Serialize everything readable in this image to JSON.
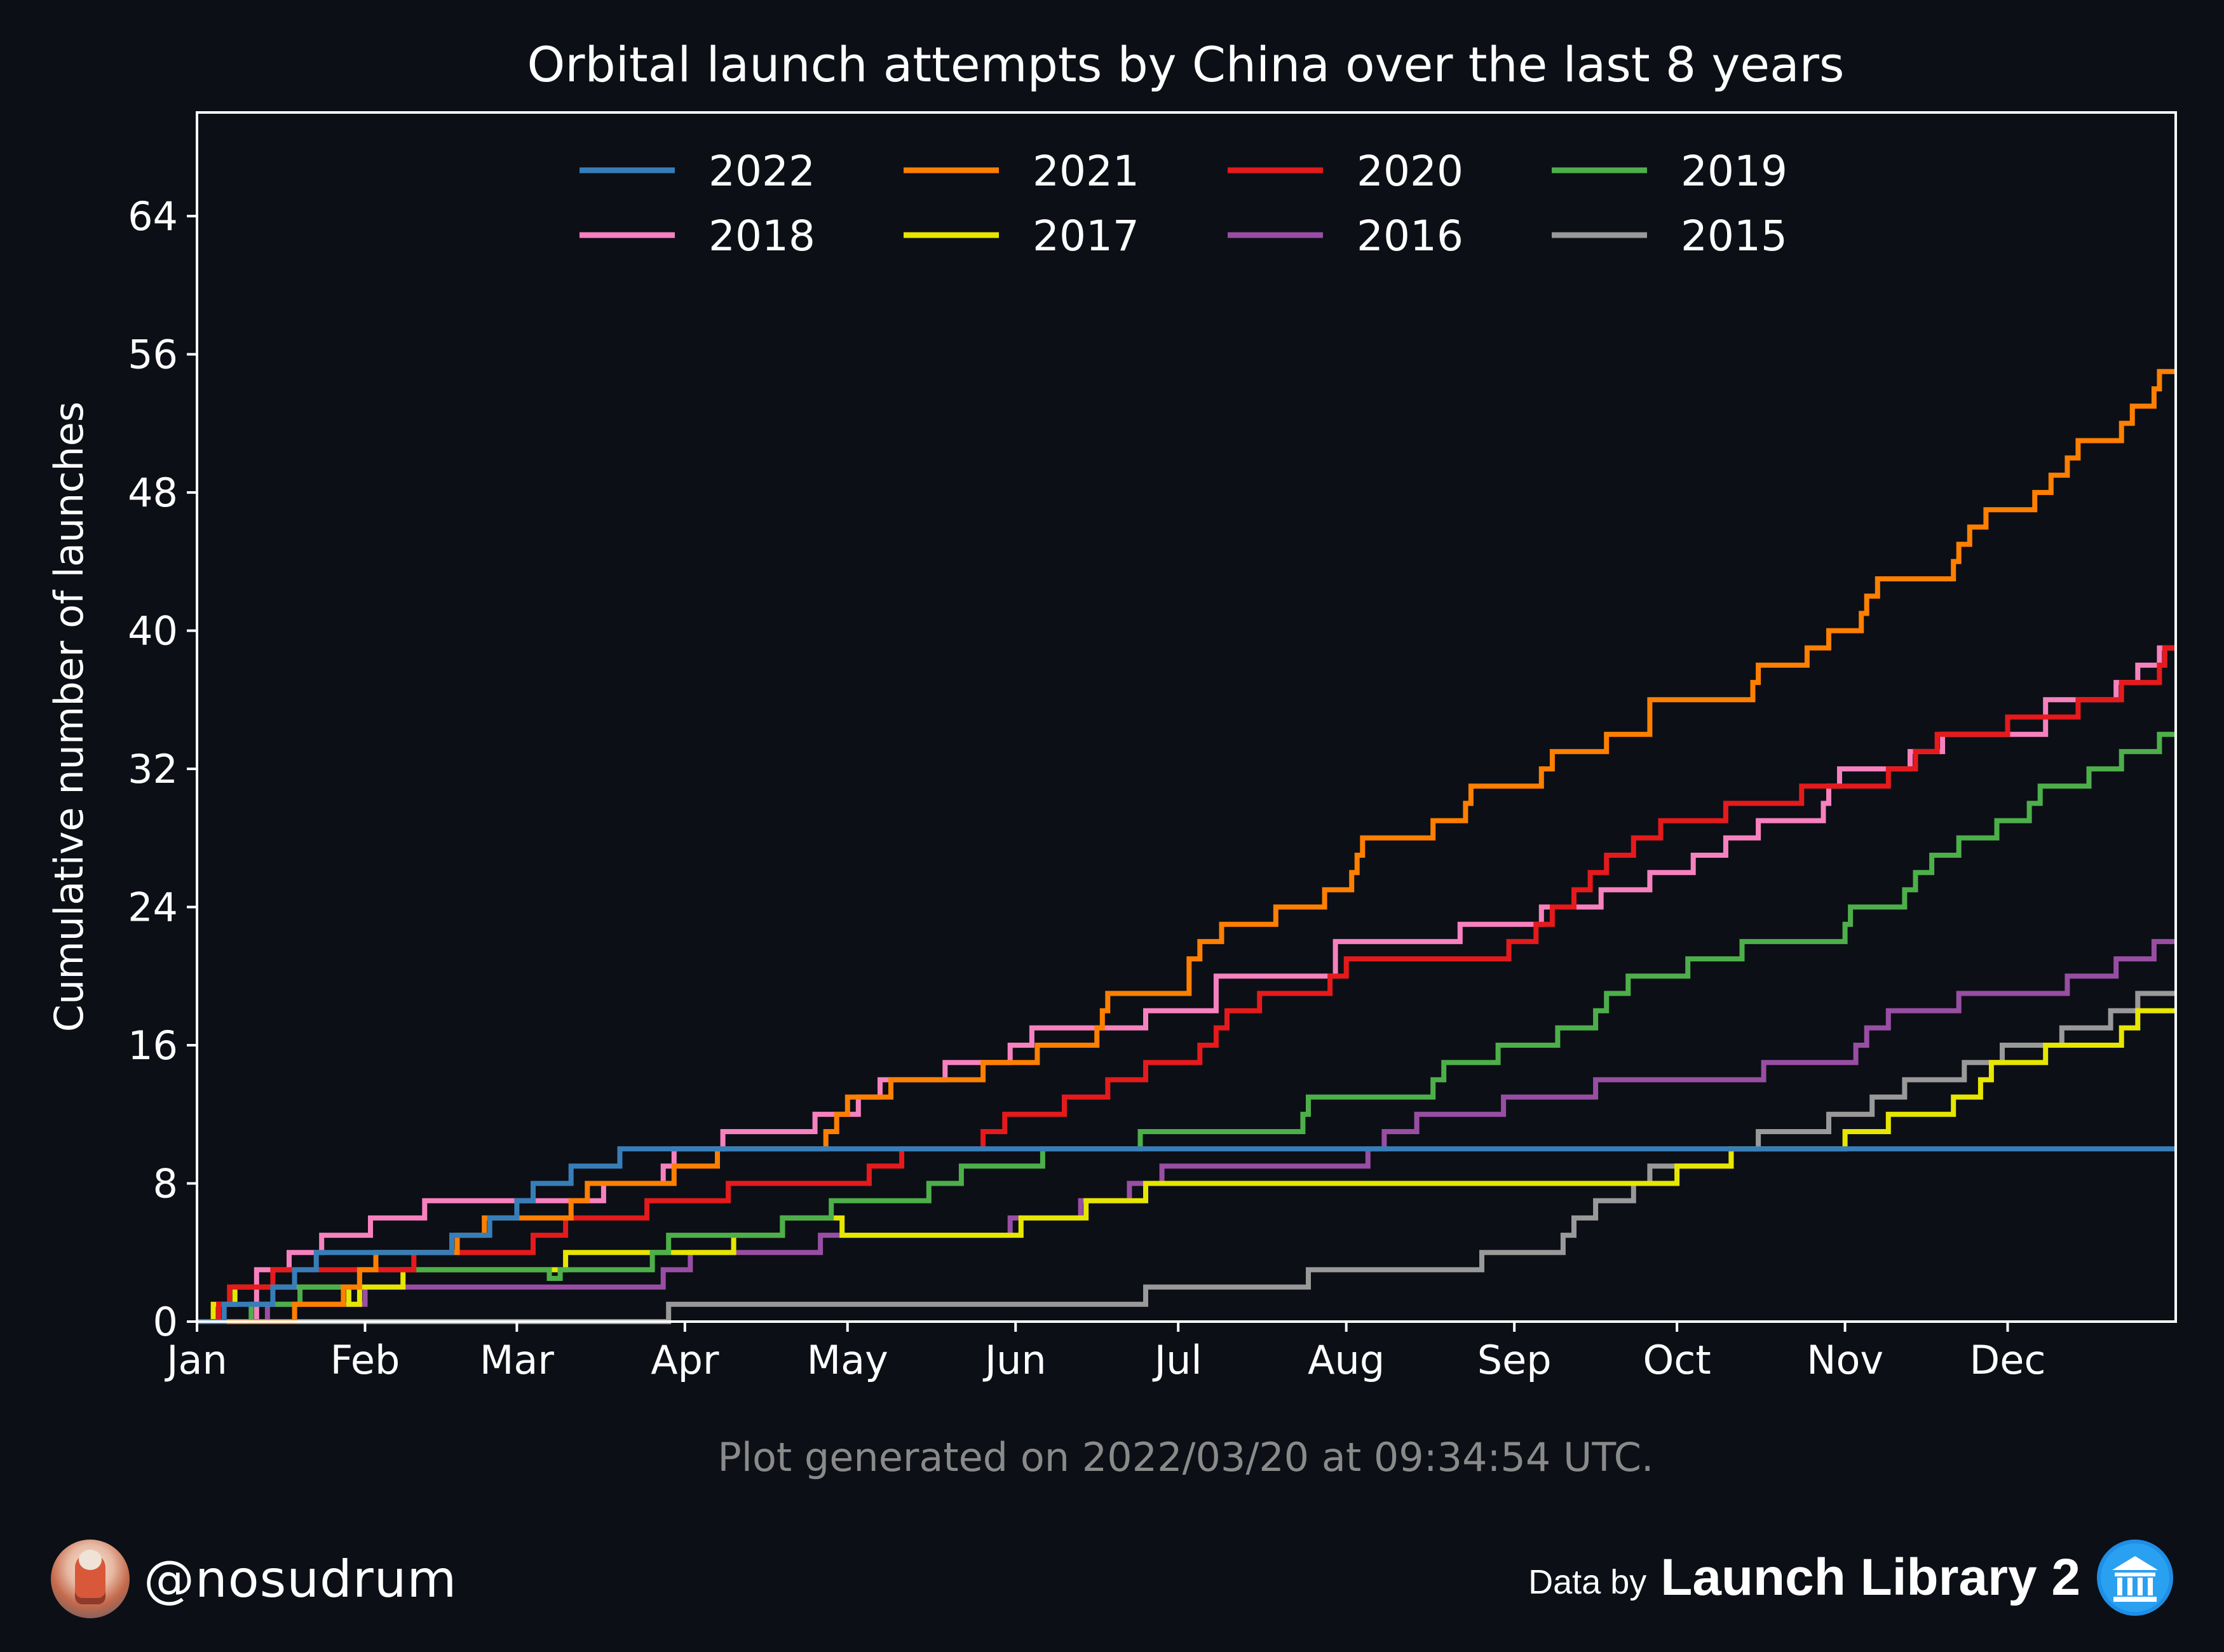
{
  "chart_data": {
    "type": "line",
    "step": true,
    "title": "Orbital launch attempts by China over the last 8 years",
    "ylabel": "Cumulative number of launches",
    "xlabel": "",
    "xlim": [
      0,
      365
    ],
    "ylim": [
      0,
      70
    ],
    "yticks": [
      0,
      8,
      16,
      24,
      32,
      40,
      48,
      56,
      64
    ],
    "xticks": [
      {
        "label": "Jan",
        "day": 0
      },
      {
        "label": "Feb",
        "day": 31
      },
      {
        "label": "Mar",
        "day": 59
      },
      {
        "label": "Apr",
        "day": 90
      },
      {
        "label": "May",
        "day": 120
      },
      {
        "label": "Jun",
        "day": 151
      },
      {
        "label": "Jul",
        "day": 181
      },
      {
        "label": "Aug",
        "day": 212
      },
      {
        "label": "Sep",
        "day": 243
      },
      {
        "label": "Oct",
        "day": 273
      },
      {
        "label": "Nov",
        "day": 304
      },
      {
        "label": "Dec",
        "day": 334
      }
    ],
    "legend_placement": "upper-center",
    "grid": false,
    "series": [
      {
        "name": "2022",
        "color": "#377eb8",
        "points": [
          [
            0,
            0
          ],
          [
            5,
            1
          ],
          [
            14,
            2
          ],
          [
            18,
            3
          ],
          [
            22,
            4
          ],
          [
            47,
            5
          ],
          [
            54,
            6
          ],
          [
            59,
            7
          ],
          [
            62,
            8
          ],
          [
            69,
            9
          ],
          [
            78,
            10
          ]
        ]
      },
      {
        "name": "2021",
        "color": "#ff7f00",
        "points": [
          [
            0,
            0
          ],
          [
            18,
            1
          ],
          [
            27,
            2
          ],
          [
            30,
            3
          ],
          [
            33,
            4
          ],
          [
            48,
            5
          ],
          [
            53,
            6
          ],
          [
            69,
            7
          ],
          [
            72,
            8
          ],
          [
            88,
            9
          ],
          [
            96,
            10
          ],
          [
            116,
            11
          ],
          [
            118,
            12
          ],
          [
            120,
            13
          ],
          [
            128,
            14
          ],
          [
            145,
            15
          ],
          [
            155,
            16
          ],
          [
            166,
            17
          ],
          [
            167,
            18
          ],
          [
            168,
            19
          ],
          [
            183,
            20
          ],
          [
            183,
            21
          ],
          [
            185,
            22
          ],
          [
            189,
            23
          ],
          [
            199,
            24
          ],
          [
            208,
            25
          ],
          [
            213,
            26
          ],
          [
            214,
            27
          ],
          [
            215,
            28
          ],
          [
            228,
            29
          ],
          [
            234,
            30
          ],
          [
            235,
            31
          ],
          [
            248,
            32
          ],
          [
            250,
            33
          ],
          [
            260,
            34
          ],
          [
            268,
            35
          ],
          [
            268,
            36
          ],
          [
            287,
            37
          ],
          [
            288,
            38
          ],
          [
            297,
            39
          ],
          [
            301,
            40
          ],
          [
            307,
            41
          ],
          [
            308,
            42
          ],
          [
            310,
            43
          ],
          [
            324,
            44
          ],
          [
            325,
            45
          ],
          [
            327,
            46
          ],
          [
            330,
            47
          ],
          [
            339,
            48
          ],
          [
            342,
            49
          ],
          [
            345,
            50
          ],
          [
            347,
            51
          ],
          [
            355,
            52
          ],
          [
            357,
            53
          ],
          [
            361,
            54
          ],
          [
            362,
            55
          ]
        ]
      },
      {
        "name": "2020",
        "color": "#e41a1c",
        "points": [
          [
            0,
            0
          ],
          [
            4,
            1
          ],
          [
            6,
            2
          ],
          [
            14,
            3
          ],
          [
            40,
            4
          ],
          [
            62,
            5
          ],
          [
            68,
            6
          ],
          [
            83,
            7
          ],
          [
            98,
            8
          ],
          [
            124,
            9
          ],
          [
            130,
            10
          ],
          [
            145,
            11
          ],
          [
            149,
            12
          ],
          [
            160,
            13
          ],
          [
            168,
            14
          ],
          [
            175,
            15
          ],
          [
            185,
            16
          ],
          [
            188,
            17
          ],
          [
            190,
            18
          ],
          [
            196,
            19
          ],
          [
            209,
            20
          ],
          [
            212,
            21
          ],
          [
            242,
            22
          ],
          [
            247,
            23
          ],
          [
            250,
            24
          ],
          [
            254,
            25
          ],
          [
            257,
            26
          ],
          [
            260,
            27
          ],
          [
            265,
            28
          ],
          [
            270,
            29
          ],
          [
            282,
            30
          ],
          [
            296,
            31
          ],
          [
            312,
            32
          ],
          [
            317,
            33
          ],
          [
            321,
            34
          ],
          [
            334,
            35
          ],
          [
            347,
            36
          ],
          [
            355,
            37
          ],
          [
            362,
            38
          ],
          [
            363,
            39
          ]
        ]
      },
      {
        "name": "2019",
        "color": "#4daf4a",
        "points": [
          [
            0,
            0
          ],
          [
            10,
            1
          ],
          [
            19,
            2
          ],
          [
            30,
            3
          ],
          [
            65,
            2.5
          ],
          [
            67,
            3
          ],
          [
            84,
            4
          ],
          [
            87,
            5
          ],
          [
            108,
            6
          ],
          [
            117,
            7
          ],
          [
            135,
            8
          ],
          [
            141,
            9
          ],
          [
            156,
            10
          ],
          [
            174,
            11
          ],
          [
            204,
            12
          ],
          [
            205,
            13
          ],
          [
            228,
            14
          ],
          [
            230,
            15
          ],
          [
            240,
            16
          ],
          [
            251,
            17
          ],
          [
            258,
            18
          ],
          [
            260,
            19
          ],
          [
            264,
            20
          ],
          [
            275,
            21
          ],
          [
            285,
            22
          ],
          [
            304,
            23
          ],
          [
            305,
            24
          ],
          [
            315,
            25
          ],
          [
            317,
            26
          ],
          [
            320,
            27
          ],
          [
            325,
            28
          ],
          [
            332,
            29
          ],
          [
            338,
            30
          ],
          [
            340,
            31
          ],
          [
            349,
            32
          ],
          [
            355,
            33
          ],
          [
            362,
            34
          ]
        ]
      },
      {
        "name": "2018",
        "color": "#f781bf",
        "points": [
          [
            0,
            0
          ],
          [
            11,
            3
          ],
          [
            17,
            4
          ],
          [
            23,
            5
          ],
          [
            32,
            6
          ],
          [
            42,
            7
          ],
          [
            75,
            8
          ],
          [
            86,
            9
          ],
          [
            88,
            10
          ],
          [
            97,
            11
          ],
          [
            114,
            12
          ],
          [
            122,
            13
          ],
          [
            126,
            14
          ],
          [
            138,
            15
          ],
          [
            150,
            16
          ],
          [
            154,
            17
          ],
          [
            175,
            18
          ],
          [
            188,
            20
          ],
          [
            210,
            22
          ],
          [
            233,
            23
          ],
          [
            248,
            24
          ],
          [
            259,
            25
          ],
          [
            268,
            26
          ],
          [
            276,
            27
          ],
          [
            282,
            28
          ],
          [
            288,
            29
          ],
          [
            300,
            30
          ],
          [
            301,
            31
          ],
          [
            303,
            32
          ],
          [
            316,
            33
          ],
          [
            322,
            34
          ],
          [
            341,
            36
          ],
          [
            354,
            37
          ],
          [
            358,
            38
          ],
          [
            362,
            39
          ]
        ]
      },
      {
        "name": "2017",
        "color": "#e6e600",
        "points": [
          [
            0,
            0
          ],
          [
            3,
            1
          ],
          [
            7,
            2
          ],
          [
            28,
            1
          ],
          [
            30,
            2
          ],
          [
            38,
            3
          ],
          [
            68,
            4
          ],
          [
            99,
            5
          ],
          [
            108,
            6
          ],
          [
            119,
            5
          ],
          [
            152,
            6
          ],
          [
            164,
            7
          ],
          [
            175,
            8
          ],
          [
            273,
            9
          ],
          [
            283,
            10
          ],
          [
            304,
            11
          ],
          [
            312,
            12
          ],
          [
            324,
            13
          ],
          [
            329,
            14
          ],
          [
            331,
            15
          ],
          [
            341,
            16
          ],
          [
            355,
            17
          ],
          [
            358,
            18
          ]
        ]
      },
      {
        "name": "2016",
        "color": "#984ea3",
        "points": [
          [
            0,
            0
          ],
          [
            13,
            1
          ],
          [
            31,
            2
          ],
          [
            86,
            3
          ],
          [
            91,
            4
          ],
          [
            115,
            5
          ],
          [
            150,
            6
          ],
          [
            163,
            7
          ],
          [
            172,
            8
          ],
          [
            178,
            9
          ],
          [
            216,
            10
          ],
          [
            219,
            11
          ],
          [
            225,
            12
          ],
          [
            241,
            13
          ],
          [
            258,
            14
          ],
          [
            289,
            15
          ],
          [
            306,
            16
          ],
          [
            308,
            17
          ],
          [
            312,
            18
          ],
          [
            325,
            19
          ],
          [
            345,
            20
          ],
          [
            354,
            21
          ],
          [
            361,
            22
          ]
        ]
      },
      {
        "name": "2015",
        "color": "#999999",
        "points": [
          [
            0,
            0
          ],
          [
            87,
            1
          ],
          [
            175,
            2
          ],
          [
            205,
            3
          ],
          [
            237,
            4
          ],
          [
            252,
            5
          ],
          [
            254,
            6
          ],
          [
            258,
            7
          ],
          [
            265,
            8
          ],
          [
            268,
            9
          ],
          [
            283,
            10
          ],
          [
            288,
            11
          ],
          [
            301,
            12
          ],
          [
            309,
            13
          ],
          [
            315,
            14
          ],
          [
            326,
            15
          ],
          [
            333,
            16
          ],
          [
            344,
            17
          ],
          [
            353,
            18
          ],
          [
            358,
            19
          ]
        ]
      }
    ],
    "annotation": "Plot generated on 2022/03/20 at 09:34:54 UTC."
  },
  "footer": {
    "handle": "@nosudrum",
    "data_by": "Data by",
    "source": "Launch Library 2",
    "avatar_icon": "astronaut-avatar",
    "source_icon": "library-building-icon"
  }
}
